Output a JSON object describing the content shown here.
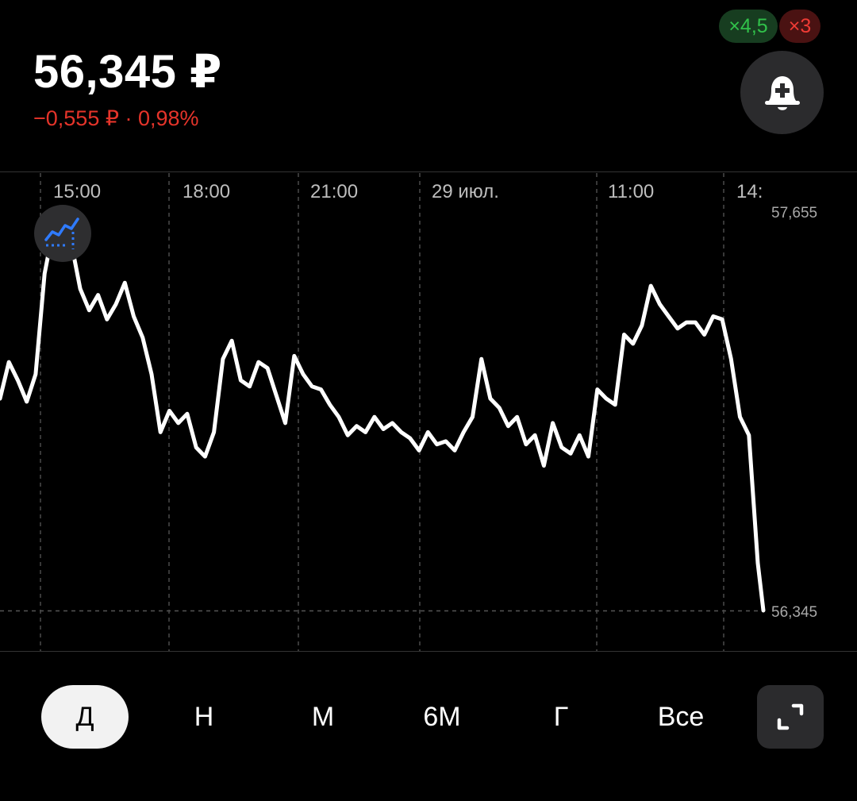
{
  "header": {
    "price": "56,345 ₽",
    "change": "−0,555 ₽ · 0,98%",
    "badges": [
      {
        "label": "×4,5",
        "color": "#31c14a"
      },
      {
        "label": "×3",
        "color": "#ef3b35"
      }
    ],
    "alert_icon": "bell-plus-icon"
  },
  "chart_data": {
    "type": "line",
    "x_tick_labels": [
      "15:00",
      "18:00",
      "21:00",
      "29 июл.",
      "11:00",
      "14:"
    ],
    "y_tick_labels": [
      "57,655",
      "56,345"
    ],
    "ylim": [
      56.345,
      57.655
    ],
    "grid": true,
    "line_color": "#ffffff",
    "series": [
      {
        "values": [
          57.04,
          57.16,
          57.1,
          57.03,
          57.12,
          57.45,
          57.6,
          57.65,
          57.55,
          57.4,
          57.33,
          57.38,
          57.3,
          57.35,
          57.42,
          57.31,
          57.24,
          57.12,
          56.93,
          57.0,
          56.96,
          56.99,
          56.88,
          56.85,
          56.93,
          57.17,
          57.23,
          57.1,
          57.08,
          57.16,
          57.14,
          57.05,
          56.96,
          57.18,
          57.12,
          57.08,
          57.07,
          57.02,
          56.98,
          56.92,
          56.95,
          56.93,
          56.98,
          56.94,
          56.96,
          56.93,
          56.91,
          56.87,
          56.93,
          56.89,
          56.9,
          56.87,
          56.93,
          56.98,
          57.17,
          57.04,
          57.01,
          56.95,
          56.98,
          56.89,
          56.92,
          56.82,
          56.96,
          56.88,
          56.86,
          56.92,
          56.85,
          57.07,
          57.04,
          57.02,
          57.25,
          57.22,
          57.28,
          57.41,
          57.35,
          57.31,
          57.27,
          57.29,
          57.29,
          57.25,
          57.31,
          57.3,
          57.17,
          56.98,
          56.92,
          56.5
        ]
      }
    ]
  },
  "controls": {
    "indicator_icon": "chart-indicator-icon",
    "expand_icon": "expand-icon"
  },
  "periods": {
    "day": "Д",
    "week": "Н",
    "month": "М",
    "half_year": "6М",
    "year": "Г",
    "all": "Все"
  }
}
